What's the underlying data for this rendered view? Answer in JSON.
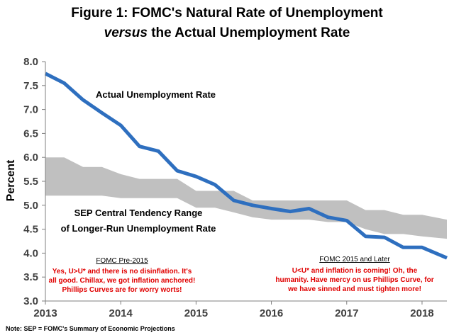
{
  "chart_data": {
    "type": "line",
    "title_line1": "Figure 1: FOMC's Natural Rate of Unemployment",
    "title_line2_em": "versus",
    "title_line2_rest": " the Actual Unemployment Rate",
    "ylabel": "Percent",
    "xlabel": "",
    "ylim": [
      3.0,
      8.0
    ],
    "xlim": [
      2013.0,
      2018.33
    ],
    "y_ticks": [
      "3.0",
      "3.5",
      "4.0",
      "4.5",
      "5.0",
      "5.5",
      "6.0",
      "6.5",
      "7.0",
      "7.5",
      "8.0"
    ],
    "x_ticks": [
      "2013",
      "2014",
      "2015",
      "2016",
      "2017",
      "2018"
    ],
    "series": [
      {
        "name": "Actual Unemployment Rate",
        "color": "#2e6fbf",
        "x": [
          2013.0,
          2013.25,
          2013.5,
          2013.75,
          2014.0,
          2014.25,
          2014.5,
          2014.75,
          2015.0,
          2015.25,
          2015.5,
          2015.75,
          2016.0,
          2016.25,
          2016.5,
          2016.75,
          2017.0,
          2017.25,
          2017.5,
          2017.75,
          2018.0,
          2018.33
        ],
        "y": [
          7.75,
          7.55,
          7.2,
          6.93,
          6.67,
          6.23,
          6.13,
          5.72,
          5.6,
          5.43,
          5.1,
          5.0,
          4.93,
          4.87,
          4.93,
          4.75,
          4.68,
          4.35,
          4.33,
          4.12,
          4.12,
          3.9
        ]
      }
    ],
    "band": {
      "name": "SEP Central Tendency Range of Longer-Run Unemployment Rate",
      "color": "#c0c0c0",
      "x": [
        2013.0,
        2013.25,
        2013.5,
        2013.75,
        2014.0,
        2014.25,
        2014.5,
        2014.75,
        2015.0,
        2015.25,
        2015.5,
        2015.75,
        2016.0,
        2016.25,
        2016.5,
        2016.75,
        2017.0,
        2017.25,
        2017.5,
        2017.75,
        2018.0,
        2018.33
      ],
      "high": [
        6.0,
        6.0,
        5.8,
        5.8,
        5.65,
        5.55,
        5.55,
        5.55,
        5.3,
        5.3,
        5.3,
        5.1,
        5.1,
        5.1,
        5.1,
        5.1,
        5.1,
        4.9,
        4.9,
        4.8,
        4.8,
        4.7
      ],
      "low": [
        5.2,
        5.2,
        5.2,
        5.2,
        5.15,
        5.15,
        5.15,
        5.15,
        4.95,
        4.95,
        4.85,
        4.75,
        4.7,
        4.7,
        4.7,
        4.65,
        4.65,
        4.5,
        4.4,
        4.4,
        4.35,
        4.3
      ]
    },
    "labels": {
      "actual": "Actual Unemployment Rate",
      "band_line1": "SEP Central Tendency Range",
      "band_line2": "of Longer-Run Unemployment Rate"
    },
    "annotations": {
      "pre_head": "FOMC Pre-2015",
      "pre_lines": [
        "Yes, U>U* and there is no disinflation. It's",
        "all good. Chillax, we got inflation anchored!",
        "Phillips Curves are for worry worts!"
      ],
      "post_head": "FOMC 2015 and Later",
      "post_lines": [
        "U<U* and inflation is coming! Oh, the",
        "humanity. Have mercy on us Phillips Curve, for",
        "we have sinned and must tighten more!"
      ]
    },
    "note": "Note: SEP = FOMC's Summary of Economic Projections",
    "grid": false,
    "legend": "none"
  }
}
